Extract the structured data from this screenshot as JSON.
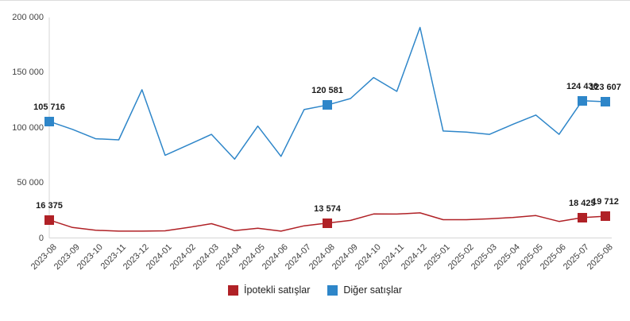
{
  "chart_data": {
    "type": "line",
    "title": "",
    "xlabel": "",
    "ylabel": "",
    "grid": "off",
    "categories": [
      "2023-08",
      "2023-09",
      "2023-10",
      "2023-11",
      "2023-12",
      "2024-01",
      "2024-02",
      "2024-03",
      "2024-04",
      "2024-05",
      "2024-06",
      "2024-07",
      "2024-08",
      "2024-09",
      "2024-10",
      "2024-11",
      "2024-12",
      "2025-01",
      "2025-02",
      "2025-03",
      "2025-04",
      "2025-05",
      "2025-06",
      "2025-07",
      "2025-08"
    ],
    "series": [
      {
        "name": "İpotekli satışlar",
        "color": "#b02126",
        "values": [
          16375,
          9500,
          7000,
          6200,
          6200,
          6500,
          9500,
          13000,
          6700,
          8900,
          6200,
          11000,
          13574,
          15900,
          21800,
          21700,
          22800,
          16600,
          16600,
          17400,
          18600,
          20300,
          15000,
          18425,
          19712
        ]
      },
      {
        "name": "Diğer satışlar",
        "color": "#2e86c9",
        "values": [
          105716,
          98500,
          90000,
          89000,
          134500,
          75000,
          84500,
          94000,
          71500,
          101500,
          74000,
          116500,
          120581,
          126500,
          145500,
          133000,
          191000,
          97000,
          96000,
          94000,
          103000,
          111500,
          94000,
          124436,
          123607
        ]
      }
    ],
    "labeled_points": [
      {
        "series_index": 0,
        "index": 0,
        "category": "2023-08",
        "label": "16 375"
      },
      {
        "series_index": 0,
        "index": 12,
        "category": "2024-08",
        "label": "13 574"
      },
      {
        "series_index": 0,
        "index": 23,
        "category": "2025-07",
        "label": "18 425"
      },
      {
        "series_index": 0,
        "index": 24,
        "category": "2025-08",
        "label": "19 712"
      },
      {
        "series_index": 1,
        "index": 0,
        "category": "2023-08",
        "label": "105 716"
      },
      {
        "series_index": 1,
        "index": 12,
        "category": "2024-08",
        "label": "120 581"
      },
      {
        "series_index": 1,
        "index": 23,
        "category": "2025-07",
        "label": "124 436"
      },
      {
        "series_index": 1,
        "index": 24,
        "category": "2025-08",
        "label": "123 607"
      }
    ],
    "y_axis": {
      "min": 0,
      "max": 200000,
      "tick_interval": 50000,
      "tick_labels": [
        "0",
        "50 000",
        "100 000",
        "150 000",
        "200 000"
      ]
    },
    "legend": {
      "position": "bottom",
      "items": [
        "İpotekli satışlar",
        "Diğer satışlar"
      ]
    },
    "axis_color": "#d6d6d6"
  }
}
